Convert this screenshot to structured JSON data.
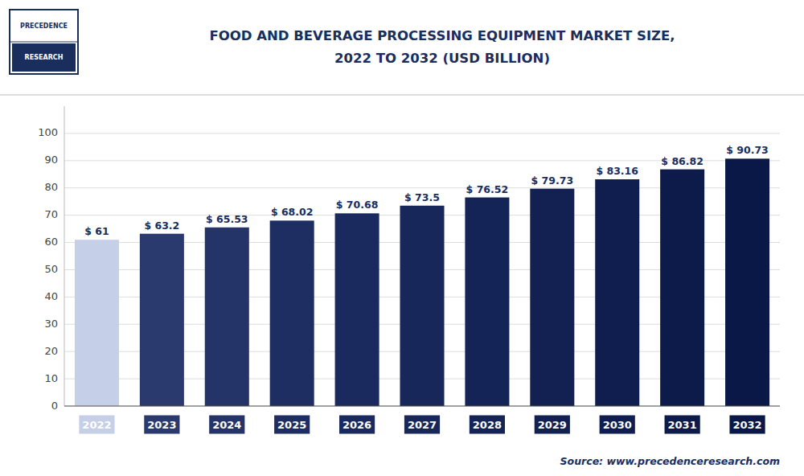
{
  "chart_data": {
    "type": "bar",
    "title": "FOOD AND BEVERAGE PROCESSING EQUIPMENT MARKET SIZE,",
    "subtitle": "2022 TO 2032 (USD BILLION)",
    "categories": [
      "2022",
      "2023",
      "2024",
      "2025",
      "2026",
      "2027",
      "2028",
      "2029",
      "2030",
      "2031",
      "2032"
    ],
    "values": [
      61.0,
      63.2,
      65.53,
      68.02,
      70.68,
      73.5,
      76.52,
      79.73,
      83.16,
      86.82,
      90.73
    ],
    "value_labels": [
      "$ 61",
      "$ 63.2",
      "$ 65.53",
      "$ 68.02",
      "$ 70.68",
      "$ 73.5",
      "$ 76.52",
      "$ 79.73",
      "$ 83.16",
      "$ 86.82",
      "$ 90.73"
    ],
    "colors": [
      "#c5cfe8",
      "#2b3a6e",
      "#243368",
      "#1f2e62",
      "#1b2a5e",
      "#18275a",
      "#152456",
      "#122152",
      "#0f1e4e",
      "#0c1b4a",
      "#091846"
    ],
    "ylim": [
      0,
      110
    ],
    "yticks": [
      0,
      10,
      20,
      30,
      40,
      50,
      60,
      70,
      80,
      90,
      100
    ],
    "grid": true,
    "data_labels": true,
    "annotations": [
      "Source: www.precedenceresearch.com",
      "PRECEDENCE",
      "RESEARCH"
    ]
  }
}
